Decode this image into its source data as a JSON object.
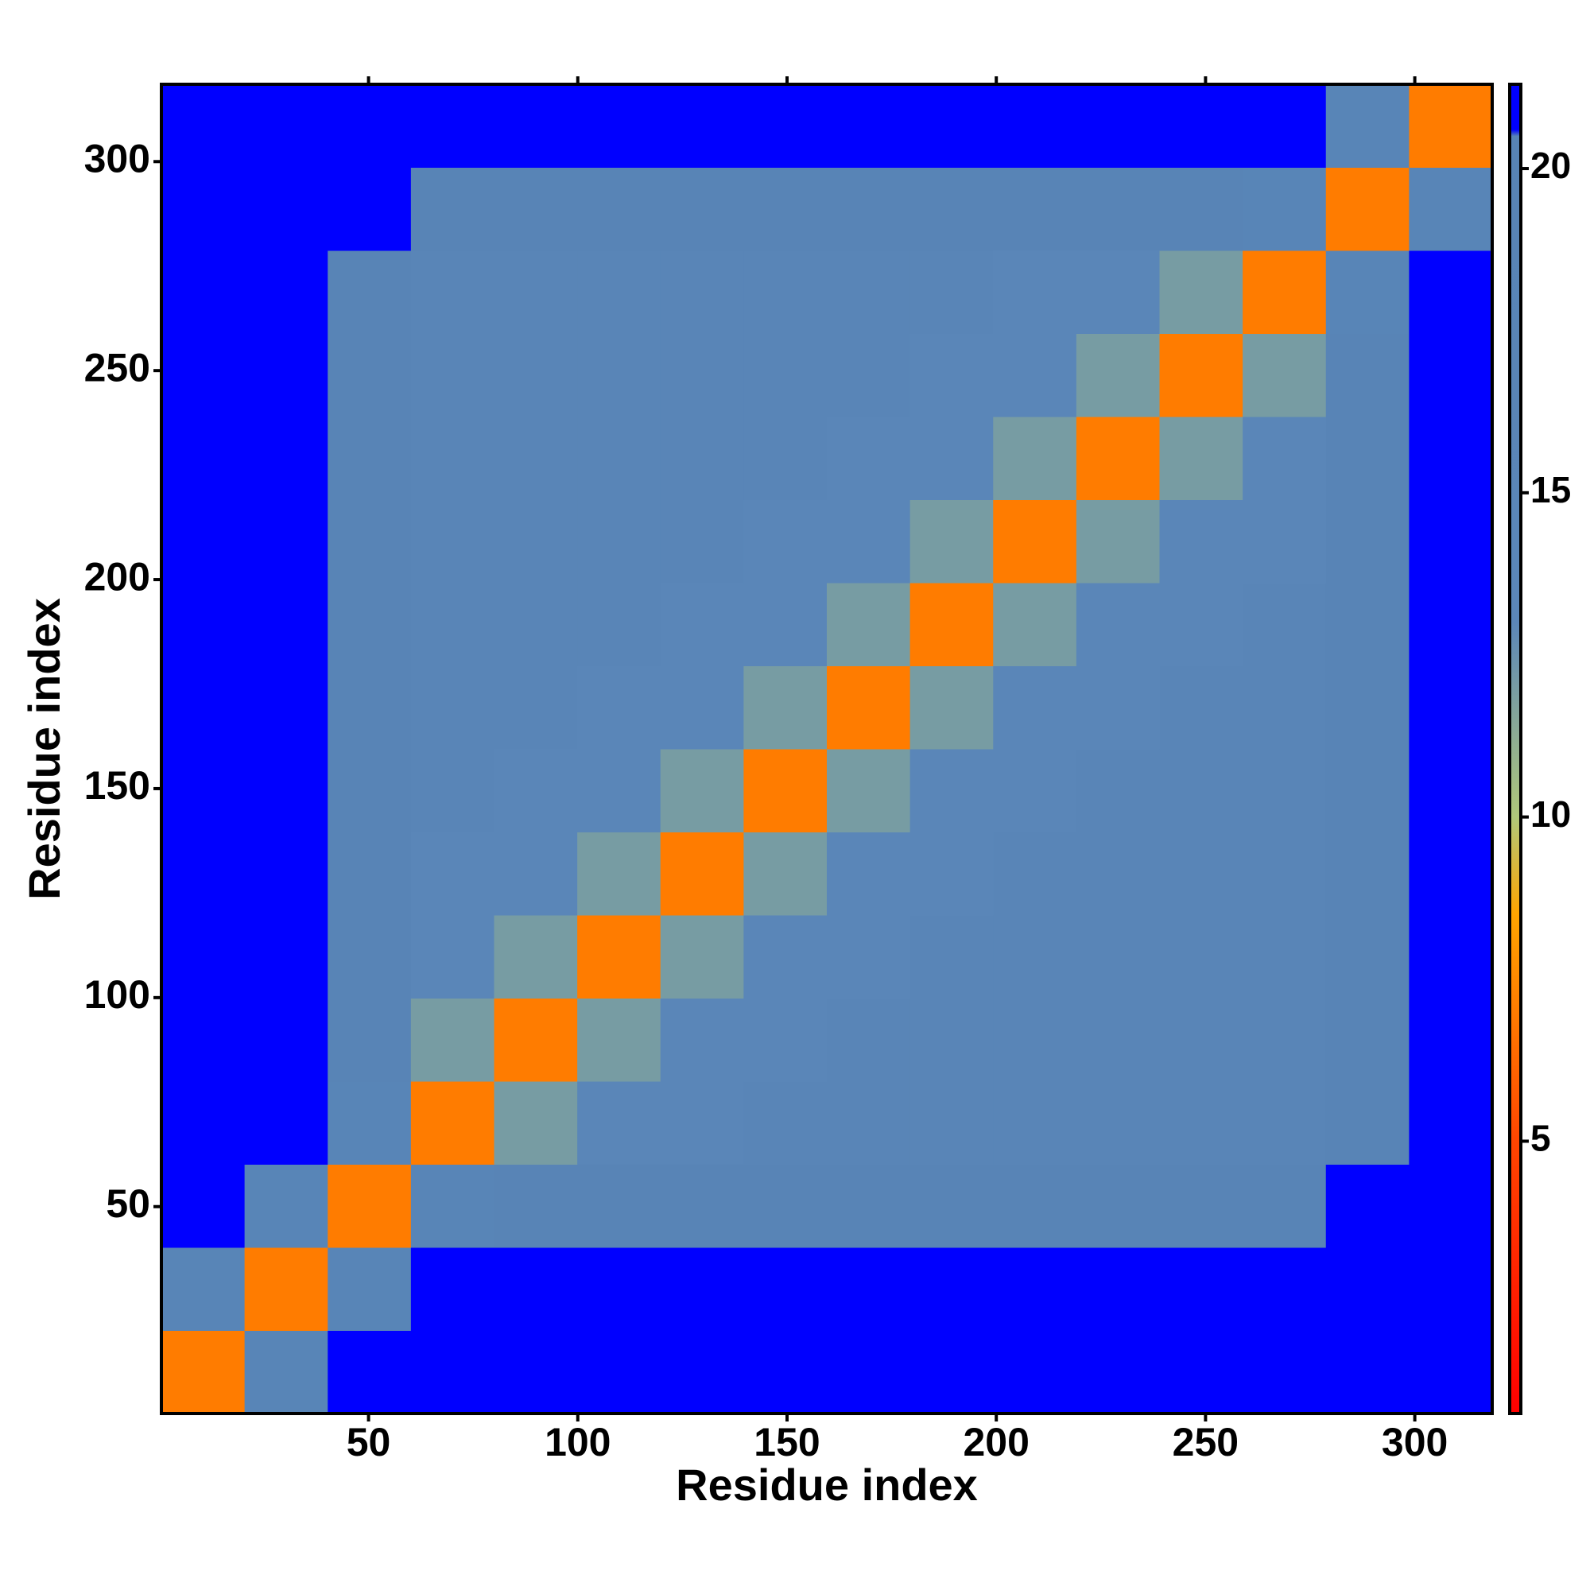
{
  "chart_data": {
    "type": "heatmap",
    "xlabel": "Residue index",
    "ylabel": "Residue index",
    "xbins": [
      0.5,
      20.375,
      40.25,
      60.125,
      80,
      99.875,
      119.75,
      139.625,
      159.5,
      179.375,
      199.25,
      219.125,
      239,
      258.875,
      278.75,
      298.625,
      318.5
    ],
    "ybins": [
      0.5,
      20.375,
      40.25,
      60.125,
      80,
      99.875,
      119.75,
      139.625,
      159.5,
      179.375,
      199.25,
      219.125,
      239,
      258.875,
      278.75,
      298.625,
      318.5
    ],
    "z": [
      [
        7,
        18,
        21,
        21,
        21,
        21,
        21,
        21,
        21,
        21,
        21,
        21,
        21,
        21,
        21,
        21
      ],
      [
        18,
        7,
        18,
        21,
        21,
        21,
        21,
        21,
        21,
        21,
        21,
        21,
        21,
        21,
        21,
        21
      ],
      [
        21,
        18,
        7,
        18,
        19,
        19,
        19,
        19,
        19,
        19,
        19,
        19,
        19,
        19,
        21,
        21
      ],
      [
        21,
        21,
        18,
        7,
        12,
        14,
        14,
        17,
        17,
        17,
        17,
        17,
        17,
        17,
        19,
        21
      ],
      [
        21,
        21,
        19,
        12,
        7,
        12,
        14,
        14,
        17,
        17,
        17,
        17,
        17,
        17,
        19,
        21
      ],
      [
        21,
        21,
        19,
        14,
        12,
        7,
        12,
        14,
        14,
        17,
        17,
        17,
        17,
        17,
        19,
        21
      ],
      [
        21,
        21,
        19,
        14,
        14,
        12,
        7,
        12,
        14,
        14,
        17,
        17,
        17,
        17,
        19,
        21
      ],
      [
        21,
        21,
        19,
        17,
        14,
        14,
        12,
        7,
        12,
        14,
        14,
        17,
        17,
        17,
        19,
        21
      ],
      [
        21,
        21,
        19,
        17,
        17,
        14,
        14,
        12,
        7,
        12,
        14,
        14,
        17,
        17,
        19,
        21
      ],
      [
        21,
        21,
        19,
        17,
        17,
        17,
        14,
        14,
        12,
        7,
        12,
        14,
        14,
        17,
        19,
        21
      ],
      [
        21,
        21,
        19,
        17,
        17,
        17,
        17,
        14,
        14,
        12,
        7,
        12,
        14,
        14,
        19,
        21
      ],
      [
        21,
        21,
        19,
        17,
        17,
        17,
        17,
        17,
        14,
        14,
        12,
        7,
        12,
        14,
        19,
        21
      ],
      [
        21,
        21,
        19,
        17,
        17,
        17,
        17,
        17,
        17,
        14,
        14,
        12,
        7,
        12,
        19,
        21
      ],
      [
        21,
        21,
        19,
        17,
        17,
        17,
        17,
        17,
        17,
        17,
        14,
        14,
        12,
        7,
        18,
        21
      ],
      [
        21,
        21,
        21,
        19,
        19,
        19,
        19,
        19,
        19,
        19,
        19,
        19,
        19,
        18,
        7,
        18
      ],
      [
        21,
        21,
        21,
        21,
        21,
        21,
        21,
        21,
        21,
        21,
        21,
        21,
        21,
        21,
        18,
        7
      ]
    ],
    "xlim": [
      0.5,
      318.5
    ],
    "ylim": [
      0.5,
      318.5
    ],
    "xticks": [
      50,
      100,
      150,
      200,
      250,
      300
    ],
    "yticks": [
      50,
      100,
      150,
      200,
      250,
      300
    ],
    "clim": [
      0.8,
      21.3
    ],
    "cticks": [
      5,
      10,
      15,
      20
    ],
    "colorscale": [
      [
        0.8,
        "#ff0000"
      ],
      [
        5,
        "#ff4500"
      ],
      [
        8.5,
        "#ffa500"
      ],
      [
        10,
        "#b0c87a"
      ],
      [
        13,
        "#5b86b8"
      ],
      [
        20.5,
        "#5784b6"
      ],
      [
        20.6,
        "#0000ff"
      ],
      [
        21.3,
        "#0000ff"
      ]
    ]
  }
}
